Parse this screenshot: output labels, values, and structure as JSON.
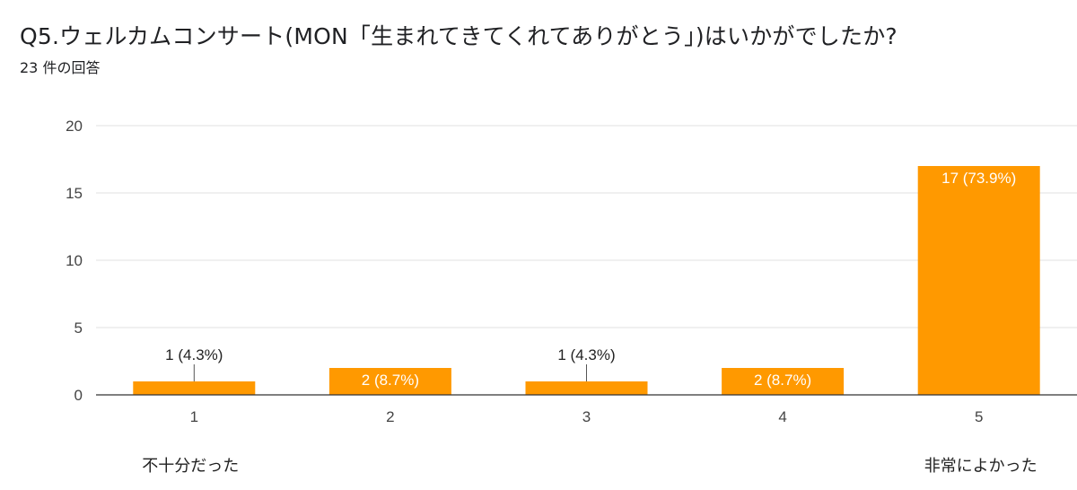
{
  "question": {
    "title": "Q5.ウェルカムコンサート(MON「生まれてきてくれてありがとう」)はいかがでしたか?",
    "response_count": "23 件の回答"
  },
  "colors": {
    "bar": "#ff9900",
    "grid": "#e0e0e0",
    "axis": "#333333",
    "label_line": "#555555"
  },
  "chart_data": {
    "type": "bar",
    "title": "Q5.ウェルカムコンサート(MON「生まれてきてくれてありがとう」)はいかがでしたか?",
    "categories": [
      "1",
      "2",
      "3",
      "4",
      "5"
    ],
    "values": [
      1,
      2,
      1,
      2,
      17
    ],
    "data_labels": [
      "1 (4.3%)",
      "2 (8.7%)",
      "1 (4.3%)",
      "2 (8.7%)",
      "17 (73.9%)"
    ],
    "ylim": [
      0,
      20
    ],
    "yticks": [
      0,
      5,
      10,
      15,
      20
    ],
    "grid": true,
    "legend": "none",
    "scale_low_label": "不十分だった",
    "scale_high_label": "非常によかった"
  }
}
